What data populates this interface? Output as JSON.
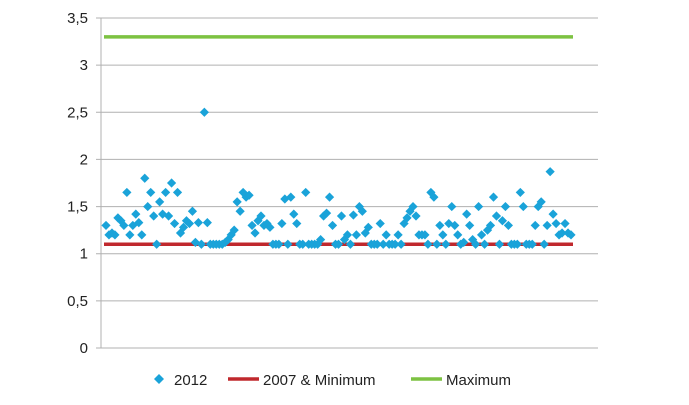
{
  "chart_data": {
    "type": "scatter",
    "ylim": [
      0,
      3.5
    ],
    "yticks": [
      "0",
      "0,5",
      "1",
      "1,5",
      "2",
      "2,5",
      "3",
      "3,5"
    ],
    "ytick_values": [
      0,
      0.5,
      1,
      1.5,
      2,
      2.5,
      3,
      3.5
    ],
    "grid": "horizontal",
    "legend_position": "bottom",
    "series": [
      {
        "name": "2012",
        "kind": "scatter",
        "marker": "diamond",
        "color": "#1aa3d9",
        "values": [
          1.3,
          1.2,
          1.22,
          1.2,
          1.38,
          1.35,
          1.3,
          1.65,
          1.2,
          1.3,
          1.42,
          1.33,
          1.2,
          1.8,
          1.5,
          1.65,
          1.4,
          1.1,
          1.55,
          1.42,
          1.65,
          1.4,
          1.75,
          1.32,
          1.65,
          1.22,
          1.28,
          1.35,
          1.32,
          1.45,
          1.12,
          1.33,
          1.1,
          2.5,
          1.33,
          1.1,
          1.1,
          1.1,
          1.1,
          1.1,
          1.12,
          1.15,
          1.2,
          1.25,
          1.55,
          1.45,
          1.65,
          1.6,
          1.62,
          1.3,
          1.22,
          1.35,
          1.4,
          1.3,
          1.32,
          1.28,
          1.1,
          1.1,
          1.1,
          1.32,
          1.58,
          1.1,
          1.6,
          1.42,
          1.32,
          1.1,
          1.1,
          1.65,
          1.1,
          1.1,
          1.1,
          1.1,
          1.15,
          1.4,
          1.43,
          1.6,
          1.3,
          1.1,
          1.1,
          1.4,
          1.15,
          1.2,
          1.1,
          1.41,
          1.2,
          1.5,
          1.45,
          1.22,
          1.28,
          1.1,
          1.1,
          1.1,
          1.32,
          1.1,
          1.2,
          1.1,
          1.1,
          1.1,
          1.2,
          1.1,
          1.32,
          1.38,
          1.45,
          1.5,
          1.4,
          1.2,
          1.2,
          1.2,
          1.1,
          1.65,
          1.6,
          1.1,
          1.3,
          1.2,
          1.1,
          1.32,
          1.5,
          1.3,
          1.2,
          1.1,
          1.12,
          1.42,
          1.3,
          1.15,
          1.1,
          1.5,
          1.2,
          1.1,
          1.25,
          1.3,
          1.6,
          1.4,
          1.1,
          1.35,
          1.5,
          1.3,
          1.1,
          1.1,
          1.1,
          1.65,
          1.5,
          1.1,
          1.1,
          1.1,
          1.3,
          1.5,
          1.55,
          1.1,
          1.3,
          1.87,
          1.42,
          1.32,
          1.2,
          1.22,
          1.32,
          1.22,
          1.2
        ]
      },
      {
        "name": "2007 & Minimum",
        "kind": "line",
        "color": "#c0282d",
        "y": 1.1
      },
      {
        "name": "Maximum",
        "kind": "line",
        "color": "#7dc242",
        "y": 3.3
      }
    ]
  }
}
